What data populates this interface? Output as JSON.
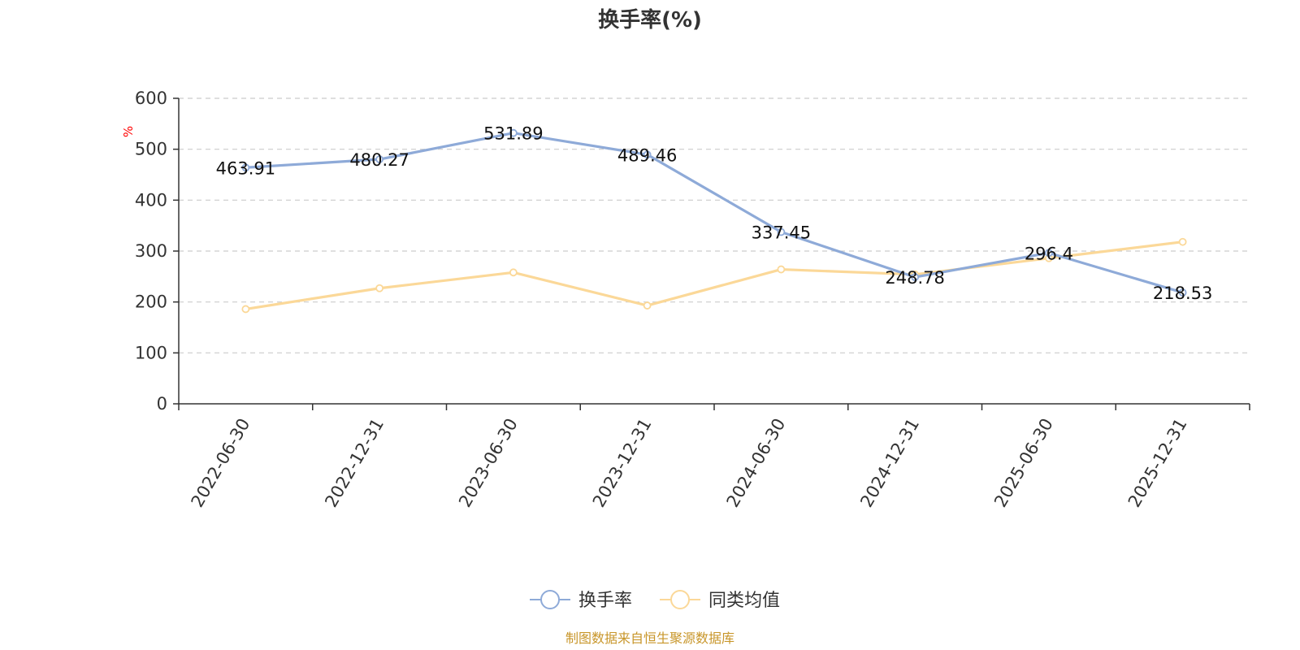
{
  "chart_data": {
    "type": "line",
    "title": "换手率(%)",
    "xlabel": "",
    "ylabel": "%",
    "ylim": [
      0,
      600
    ],
    "yticks": [
      0,
      100,
      200,
      300,
      400,
      500,
      600
    ],
    "grid": true,
    "categories": [
      "2022-06-30",
      "2022-12-31",
      "2023-06-30",
      "2023-12-31",
      "2024-06-30",
      "2024-12-31",
      "2025-06-30",
      "2025-12-31"
    ],
    "series": [
      {
        "name": "换手率",
        "color": "#8eaad8",
        "values": [
          463.91,
          480.27,
          531.89,
          489.46,
          337.45,
          248.78,
          296.4,
          218.53
        ],
        "labels": [
          "463.91",
          "480.27",
          "531.89",
          "489.46",
          "337.45",
          "248.78",
          "296.4",
          "218.53"
        ],
        "show_labels": true
      },
      {
        "name": "同类均值",
        "color": "#fbd898",
        "values": [
          186,
          227,
          258,
          193,
          264,
          254,
          286,
          318
        ],
        "show_labels": false
      }
    ],
    "legend_position": "bottom-center",
    "ylabel_color": "#ff0000"
  },
  "footer": {
    "source": "制图数据来自恒生聚源数据库",
    "source_color": "#c8962a"
  },
  "colors": {
    "axis": "#333333",
    "grid": "#cccccc"
  }
}
